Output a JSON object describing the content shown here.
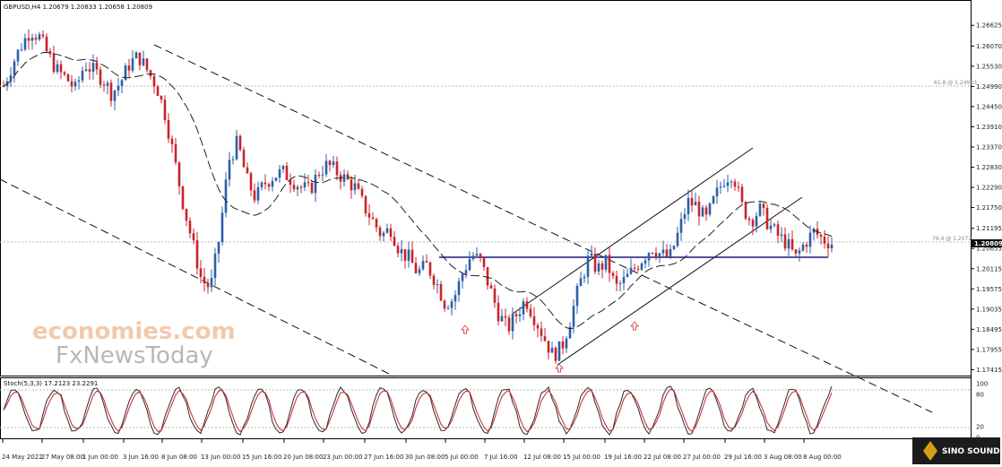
{
  "header": {
    "title": "GBPUSD,H4  1.20679 1.20833 1.20658 1.20809",
    "stoch_label": "Stoch(5,3,3) 17.2123 23.2291"
  },
  "current_price": "1.20809",
  "watermark": {
    "line1": "economies.com",
    "line2": "FxNewsToday"
  },
  "logo": {
    "text": "SINO SOUND"
  },
  "colors": {
    "bull": "#2c5fa8",
    "bear": "#c8242b",
    "level_line": "#1a1a7a",
    "stoch_main": "#2b2b2b",
    "stoch_signal": "#c8242b",
    "arrow": "#d9534f"
  },
  "chart_data": [
    {
      "type": "candlestick",
      "symbol": "GBPUSD",
      "timeframe": "H4",
      "y_ticks": [
        "1.26625",
        "1.26070",
        "1.25530",
        "1.24990",
        "1.24450",
        "1.23910",
        "1.23370",
        "1.22830",
        "1.22290",
        "1.21750",
        "1.21195",
        "1.20655",
        "1.20115",
        "1.19575",
        "1.19035",
        "1.18495",
        "1.17955",
        "1.17415"
      ],
      "x_ticks": [
        "24 May 2022",
        "27 May 08:00",
        "1 Jun 00:00",
        "3 Jun 16:00",
        "8 Jun 08:00",
        "13 Jun 00:00",
        "15 Jun 16:00",
        "20 Jun 08:00",
        "23 Jun 00:00",
        "27 Jun 16:00",
        "30 Jun 08:00",
        "5 Jul 00:00",
        "7 Jul 16:00",
        "12 Jul 08:00",
        "15 Jul 00:00",
        "19 Jul 16:00",
        "22 Jul 08:00",
        "27 Jul 00:00",
        "29 Jul 16:00",
        "3 Aug 08:00",
        "8 Aug 00:00"
      ],
      "ylim": [
        1.1728,
        1.2687
      ],
      "fib_levels": [
        {
          "label": "61.8 @ 1.24903",
          "value": 1.24903
        },
        {
          "label": "76.4 @ 1.2072",
          "value": 1.2072
        }
      ],
      "support_level": 1.2045,
      "closes_sampled": [
        1.25,
        1.256,
        1.261,
        1.265,
        1.263,
        1.258,
        1.254,
        1.252,
        1.249,
        1.256,
        1.254,
        1.252,
        1.248,
        1.251,
        1.256,
        1.258,
        1.254,
        1.25,
        1.242,
        1.23,
        1.218,
        1.208,
        1.198,
        1.196,
        1.21,
        1.23,
        1.235,
        1.225,
        1.22,
        1.224,
        1.226,
        1.227,
        1.225,
        1.223,
        1.222,
        1.227,
        1.229,
        1.227,
        1.225,
        1.223,
        1.218,
        1.214,
        1.21,
        1.212,
        1.206,
        1.204,
        1.2,
        1.202,
        1.198,
        1.192,
        1.193,
        1.2,
        1.205,
        1.203,
        1.196,
        1.189,
        1.185,
        1.189,
        1.193,
        1.188,
        1.183,
        1.178,
        1.18,
        1.188,
        1.197,
        1.204,
        1.201,
        1.203,
        1.196,
        1.198,
        1.201,
        1.204,
        1.207,
        1.205,
        1.204,
        1.211,
        1.219,
        1.218,
        1.214,
        1.22,
        1.225,
        1.227,
        1.218,
        1.214,
        1.217,
        1.213,
        1.21,
        1.208,
        1.204,
        1.208,
        1.211,
        1.209,
        1.208
      ]
    },
    {
      "type": "line",
      "name": "Stoch(5,3,3)",
      "values": [
        17.2123,
        23.2291
      ],
      "y_ticks": [
        "100",
        "80",
        "20",
        "0"
      ],
      "ylim": [
        0,
        100
      ]
    }
  ]
}
